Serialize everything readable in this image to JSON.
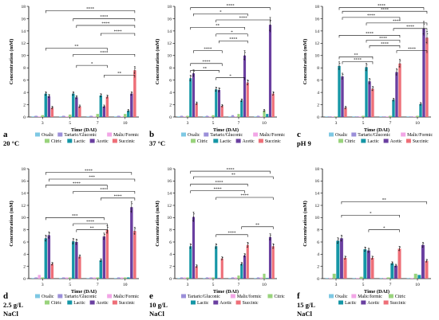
{
  "colors": {
    "Oxalic": "#7ec8e3",
    "Tartaric/Gluconic": "#9b8fd9",
    "Malic/Formic": "#f2a6e6",
    "Malic/formic": "#f2a6e6",
    "Citric": "#99d37c",
    "Lactic": "#1596a6",
    "Acetic": "#6a3fa0",
    "Succinic": "#ee6f78"
  },
  "panels": [
    {
      "letter": "a",
      "condition": "20 °C",
      "condition2": "",
      "chart_data": {
        "type": "bar",
        "xlabel": "Time (DAI)",
        "ylabel": "Concentration (mM)",
        "ylim": [
          0,
          18
        ],
        "yticks": [
          0,
          2,
          4,
          6,
          8,
          10,
          12,
          14,
          16,
          18
        ],
        "categories": [
          "3",
          "5",
          "7",
          "10"
        ],
        "series": [
          {
            "name": "Oxalic",
            "values": [
              0.1,
              0.1,
              0.1,
              0.1
            ]
          },
          {
            "name": "Tartaric/Gluconic",
            "values": [
              0.2,
              0.2,
              0.2,
              0.2
            ]
          },
          {
            "name": "Malic/Formic",
            "values": [
              0.1,
              0.1,
              0.1,
              0.1
            ]
          },
          {
            "name": "Citric",
            "values": [
              0.3,
              0.4,
              0.5,
              0.5
            ]
          },
          {
            "name": "Lactic",
            "values": [
              3.8,
              3.8,
              3.5,
              1.0
            ]
          },
          {
            "name": "Acetic",
            "values": [
              3.4,
              3.2,
              1.7,
              3.8
            ]
          },
          {
            "name": "Succinic",
            "values": [
              1.5,
              1.7,
              3.3,
              7.6
            ]
          }
        ],
        "brackets": [
          "****",
          "****",
          "****",
          "****",
          "**",
          "****",
          "*",
          "**"
        ],
        "legend": [
          "Oxalic",
          "Tartaric/Gluconic",
          "Malic/Formic",
          "Citric",
          "Lactic",
          "Acetic",
          "Succinic"
        ]
      }
    },
    {
      "letter": "b",
      "condition": "37 °C",
      "condition2": "",
      "chart_data": {
        "type": "bar",
        "xlabel": "Time (DAI)",
        "ylabel": "Concentration (mM)",
        "ylim": [
          0,
          18
        ],
        "yticks": [
          0,
          2,
          4,
          6,
          8,
          10,
          12,
          14,
          16,
          18
        ],
        "categories": [
          "3",
          "5",
          "7",
          "10"
        ],
        "series": [
          {
            "name": "Oxalic",
            "values": [
              0.1,
              0.1,
              0.1,
              0.1
            ]
          },
          {
            "name": "Tartaric/Gluconic",
            "values": [
              0.2,
              0.2,
              0.3,
              0.2
            ]
          },
          {
            "name": "Malic/Formic",
            "values": [
              0.1,
              0.1,
              0.1,
              0.1
            ]
          },
          {
            "name": "Citric",
            "values": [
              0.2,
              0.3,
              0.5,
              1.0
            ]
          },
          {
            "name": "Lactic",
            "values": [
              6.3,
              4.5,
              2.7,
              0.5
            ]
          },
          {
            "name": "Acetic",
            "values": [
              7.1,
              4.4,
              10.0,
              15.0
            ]
          },
          {
            "name": "Succinic",
            "values": [
              2.2,
              1.8,
              5.6,
              3.8
            ]
          }
        ],
        "brackets": [
          "****",
          "*",
          "****",
          "**",
          "*",
          "****",
          "****",
          "****",
          "**",
          "*"
        ],
        "legend": [
          "Oxalic",
          "Tartaric/Gluconic",
          "Malic/Formic",
          "Citric",
          "Lactic",
          "Acetic",
          "Succinic"
        ]
      }
    },
    {
      "letter": "c",
      "condition": "pH 9",
      "condition2": "",
      "chart_data": {
        "type": "bar",
        "xlabel": "Time (DAI)",
        "ylabel": "Concentration (mM)",
        "ylim": [
          0,
          18
        ],
        "yticks": [
          0,
          2,
          4,
          6,
          8,
          10,
          12,
          14,
          16,
          18
        ],
        "categories": [
          "3",
          "5",
          "7",
          "10"
        ],
        "series": [
          {
            "name": "Oxalic",
            "values": [
              0.1,
              0.1,
              0.1,
              0.1
            ]
          },
          {
            "name": "Tartaric/Gluconic",
            "values": [
              0.1,
              0.1,
              0.1,
              0.1
            ]
          },
          {
            "name": "Malic/Formic",
            "values": [
              0.1,
              0.1,
              0.1,
              0.1
            ]
          },
          {
            "name": "Citric",
            "values": [
              0.1,
              0.2,
              0.2,
              0.2
            ]
          },
          {
            "name": "Lactic",
            "values": [
              8.3,
              8.1,
              2.8,
              2.1
            ]
          },
          {
            "name": "Acetic",
            "values": [
              6.6,
              5.8,
              7.3,
              14.4
            ]
          },
          {
            "name": "Succinic",
            "values": [
              1.5,
              4.6,
              8.7,
              12.9
            ]
          }
        ],
        "brackets": [
          "****",
          "****",
          "****",
          "****",
          "****",
          "****",
          "****",
          "****",
          "****",
          "**",
          "****"
        ],
        "legend": [
          "Oxalic",
          "Tartaric/Gluconic",
          "Malic/Formic",
          "Citric",
          "Lactic",
          "Acetic",
          "Succinic"
        ]
      }
    },
    {
      "letter": "d",
      "condition": "2.5 g/L",
      "condition2": "NaCl",
      "chart_data": {
        "type": "bar",
        "xlabel": "Time (DAI)",
        "ylabel": "Concentration (mM)",
        "ylim": [
          0,
          18
        ],
        "yticks": [
          0,
          2,
          4,
          6,
          8,
          10,
          12,
          14,
          16,
          18
        ],
        "categories": [
          "3",
          "5",
          "7",
          "10"
        ],
        "series": [
          {
            "name": "Oxalic",
            "values": [
              0.1,
              0.1,
              0.1,
              0.1
            ]
          },
          {
            "name": "Tartaric/Gluconic",
            "values": [
              0.2,
              0.2,
              0.2,
              0.2
            ]
          },
          {
            "name": "Malic/Formic",
            "values": [
              0.6,
              0.2,
              0.2,
              0.2
            ]
          },
          {
            "name": "Citric",
            "values": [
              0.2,
              0.2,
              0.2,
              0.2
            ]
          },
          {
            "name": "Lactic",
            "values": [
              6.6,
              6.1,
              3.0,
              0.2
            ]
          },
          {
            "name": "Acetic",
            "values": [
              7.1,
              6.0,
              6.9,
              11.7
            ]
          },
          {
            "name": "Succinic",
            "values": [
              2.4,
              3.6,
              8.0,
              7.8
            ]
          }
        ],
        "brackets": [
          "****",
          "***",
          "****",
          "****",
          "****",
          "***",
          "****",
          "**"
        ],
        "legend": [
          "Oxalic",
          "Tartaric/Gluconic",
          "Malic/Formic",
          "Citric",
          "Lactic",
          "Acetic",
          "Succinic"
        ]
      }
    },
    {
      "letter": "e",
      "condition": "10 g/L",
      "condition2": "NaCl",
      "chart_data": {
        "type": "bar",
        "xlabel": "Time (DAI)",
        "ylabel": "Concentration (mM)",
        "ylim": [
          0,
          18
        ],
        "yticks": [
          0,
          2,
          4,
          6,
          8,
          10,
          12,
          14,
          16,
          18
        ],
        "categories": [
          "3",
          "5",
          "7",
          "10"
        ],
        "series": [
          {
            "name": "Oxalic",
            "values": [
              0.1,
              0.1,
              0.1,
              0.1
            ]
          },
          {
            "name": "Tartaric/Gluconic",
            "values": [
              0.2,
              0.2,
              0.2,
              0.2
            ]
          },
          {
            "name": "Malic/formic",
            "values": [
              0.2,
              0.2,
              0.2,
              0.2
            ]
          },
          {
            "name": "Citric",
            "values": [
              0.2,
              0.2,
              0.5,
              0.8
            ]
          },
          {
            "name": "Lactic",
            "values": [
              5.3,
              5.3,
              2.4,
              0.1
            ]
          },
          {
            "name": "Acetic",
            "values": [
              10.1,
              0.1,
              3.8,
              6.8
            ]
          },
          {
            "name": "Succinic",
            "values": [
              2.0,
              3.3,
              5.5,
              5.3
            ]
          }
        ],
        "brackets": [
          "****",
          "**",
          "****",
          "****",
          "****",
          "**",
          "****"
        ],
        "legend": [
          "Tartaric/Gluconic",
          "Malic/formic",
          "Citric",
          "Lactic",
          "Acetic",
          "Succinic"
        ]
      }
    },
    {
      "letter": "f",
      "condition": "15 g/L",
      "condition2": "NaCl",
      "chart_data": {
        "type": "bar",
        "xlabel": "Time (DAI)",
        "ylabel": "Concentration (mM)",
        "ylim": [
          0,
          18
        ],
        "yticks": [
          0,
          2,
          4,
          6,
          8,
          10,
          12,
          14,
          16,
          18
        ],
        "categories": [
          "3",
          "5",
          "7",
          "10"
        ],
        "series": [
          {
            "name": "Oxalic",
            "values": [
              0.1,
              0.1,
              0.1,
              0.1
            ]
          },
          {
            "name": "Malic/formic",
            "values": [
              0.1,
              0.1,
              0.1,
              0.1
            ]
          },
          {
            "name": "Citric",
            "values": [
              0.8,
              0.3,
              0.2,
              0.8
            ]
          },
          {
            "name": "Lactic",
            "values": [
              6.2,
              4.8,
              2.5,
              0.6
            ]
          },
          {
            "name": "Acetic",
            "values": [
              6.6,
              4.6,
              2.1,
              5.5
            ]
          },
          {
            "name": "Succinic",
            "values": [
              3.4,
              3.4,
              4.9,
              2.9
            ]
          }
        ],
        "brackets": [
          "**",
          "*",
          "*"
        ],
        "legend": [
          "Oxalic",
          "Malic/formic",
          "Citric",
          "Lactic",
          "Acetic",
          "Succinic"
        ]
      }
    }
  ]
}
